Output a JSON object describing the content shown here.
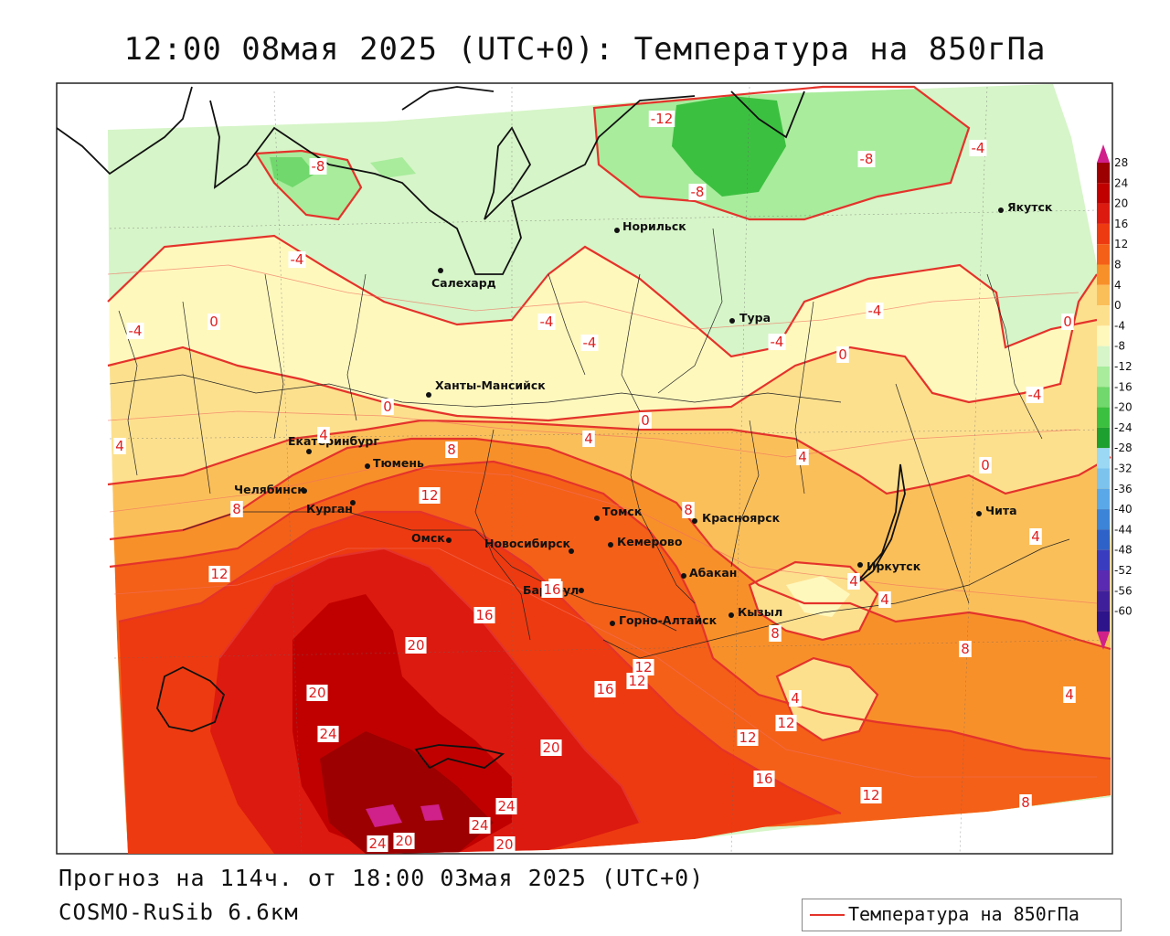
{
  "title": "12:00 08мая 2025 (UTC+0): Температура на 850гПа",
  "footer": {
    "forecast": "Прогноз на 114ч. от 18:00 03мая 2025 (UTC+0)",
    "model": "COSMO-RuSib 6.6км"
  },
  "legend": {
    "label": "Температура на 850гПа",
    "line_color": "#e4332b"
  },
  "colorbar": {
    "levels": [
      "28",
      "24",
      "20",
      "16",
      "12",
      "8",
      "4",
      "0",
      "-4",
      "-8",
      "-12",
      "-16",
      "-20",
      "-24",
      "-28",
      "-32",
      "-36",
      "-40",
      "-44",
      "-48",
      "-52",
      "-56",
      "-60"
    ],
    "colors": [
      "#9c0000",
      "#c00000",
      "#dc1a10",
      "#ee3a10",
      "#f46018",
      "#f8902a",
      "#fbbf5a",
      "#fde08e",
      "#fff8bd",
      "#d6f5c8",
      "#a8ec9c",
      "#70d86c",
      "#3cc040",
      "#1ea030",
      "#9ad8f4",
      "#7cc4ee",
      "#5aa8e8",
      "#3c84d8",
      "#2f62c8",
      "#3a3cc0",
      "#5a2ab0",
      "#40209a",
      "#2e148a"
    ],
    "top_arrow_color": "#d0208a",
    "bottom_arrow_color": "#d0208a"
  },
  "cities": [
    {
      "name": "Норильск"
    },
    {
      "name": "Якутск"
    },
    {
      "name": "Салехард"
    },
    {
      "name": "Тура"
    },
    {
      "name": "Ханты-Мансийск"
    },
    {
      "name": "Екатеринбург"
    },
    {
      "name": "Тюмень"
    },
    {
      "name": "Челябинск"
    },
    {
      "name": "Курган"
    },
    {
      "name": "Омск"
    },
    {
      "name": "Томск"
    },
    {
      "name": "Красноярск"
    },
    {
      "name": "Чита"
    },
    {
      "name": "Новосибирск"
    },
    {
      "name": "Кемерово"
    },
    {
      "name": "Абакан"
    },
    {
      "name": "Иркутск"
    },
    {
      "name": "Барнаул"
    },
    {
      "name": "Кызыл"
    },
    {
      "name": "Горно-Алтайск"
    }
  ],
  "isotherm_labels": [
    "-12",
    "-8",
    "-8",
    "-8",
    "-4",
    "-4",
    "-4",
    "-4",
    "-4",
    "-4",
    "-4",
    "-4",
    "0",
    "0",
    "0",
    "0",
    "0",
    "0",
    "4",
    "4",
    "4",
    "4",
    "4",
    "4",
    "4",
    "4",
    "4",
    "4",
    "8",
    "8",
    "8",
    "8",
    "8",
    "8",
    "12",
    "12",
    "12",
    "12",
    "12",
    "12",
    "12",
    "16",
    "16",
    "16",
    "16",
    "20",
    "20",
    "20",
    "20",
    "20",
    "24",
    "24",
    "24",
    "24"
  ]
}
